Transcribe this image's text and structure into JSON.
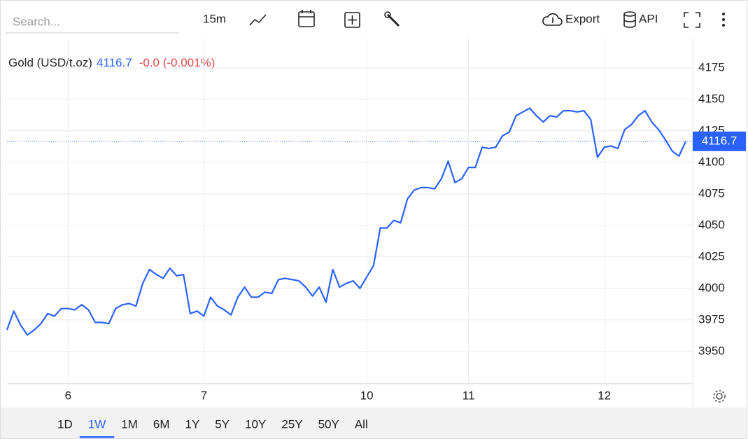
{
  "toolbar": {
    "search_placeholder": "Search...",
    "interval": "15m",
    "export": "Export",
    "api": "API"
  },
  "ranges": {
    "options": [
      "1D",
      "1W",
      "1M",
      "6M",
      "1Y",
      "5Y",
      "10Y",
      "25Y",
      "50Y",
      "All"
    ],
    "selected": "1W"
  },
  "chart_data": {
    "type": "line",
    "title": "Gold (USD/t.oz)",
    "last_price": 4116.7,
    "change_label": "-0.0 (-0.001%)",
    "color": "#2962ff",
    "grid": true,
    "ylim": [
      3924.4,
      4198.3
    ],
    "yticks": [
      3950,
      3975,
      4000,
      4025,
      4050,
      4075,
      4100,
      4125,
      4150,
      4175
    ],
    "categories": [
      null,
      null,
      null,
      null,
      null,
      null,
      null,
      null,
      null,
      "6",
      null,
      null,
      null,
      null,
      null,
      null,
      null,
      null,
      null,
      null,
      null,
      null,
      null,
      null,
      null,
      null,
      null,
      null,
      null,
      "7",
      null,
      null,
      null,
      null,
      null,
      null,
      null,
      null,
      null,
      null,
      null,
      null,
      null,
      null,
      null,
      null,
      null,
      null,
      null,
      null,
      null,
      null,
      null,
      "10",
      null,
      null,
      null,
      null,
      null,
      null,
      null,
      null,
      null,
      null,
      null,
      null,
      null,
      null,
      "11",
      null,
      null,
      null,
      null,
      null,
      null,
      null,
      null,
      null,
      null,
      null,
      null,
      null,
      null,
      null,
      null,
      null,
      null,
      null,
      "12",
      null,
      null,
      null,
      null,
      null,
      null,
      null,
      null,
      null,
      null,
      null,
      null
    ],
    "values": [
      3967,
      3982,
      3971,
      3963,
      3967,
      3972,
      3980,
      3978,
      3984,
      3984,
      3983,
      3987,
      3983,
      3973,
      3973,
      3972,
      3984,
      3987,
      3988,
      3986,
      4004,
      4015,
      4011,
      4008,
      4016,
      4010,
      4011,
      3980,
      3982,
      3978,
      3993,
      3986,
      3983,
      3979,
      3993,
      4001,
      3993,
      3993,
      3997,
      3996,
      4007,
      4008,
      4007,
      4006,
      4001,
      3994,
      4001,
      3989,
      4015,
      4001,
      4004,
      4006,
      4000,
      4009,
      4018,
      4048,
      4048,
      4054,
      4052,
      4071,
      4078,
      4080,
      4080,
      4079,
      4087,
      4101,
      4084,
      4087,
      4096,
      4096,
      4112,
      4111,
      4112,
      4121,
      4124,
      4137,
      4140,
      4143,
      4137,
      4132,
      4137,
      4136,
      4141,
      4141,
      4140,
      4141,
      4134,
      4104,
      4112,
      4113,
      4111,
      4126,
      4130,
      4137,
      4141,
      4132,
      4126,
      4118,
      4109,
      4105,
      4116.7
    ]
  }
}
